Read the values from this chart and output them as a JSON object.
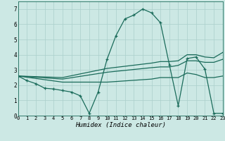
{
  "xlabel": "Humidex (Indice chaleur)",
  "bg_color": "#cce8e4",
  "grid_color": "#aacfcb",
  "line_color": "#1a6b5a",
  "xlim": [
    0,
    23
  ],
  "ylim": [
    0,
    7.5
  ],
  "xticks": [
    0,
    1,
    2,
    3,
    4,
    5,
    6,
    7,
    8,
    9,
    10,
    11,
    12,
    13,
    14,
    15,
    16,
    17,
    18,
    19,
    20,
    21,
    22,
    23
  ],
  "yticks": [
    0,
    1,
    2,
    3,
    4,
    5,
    6,
    7
  ],
  "curve_main_x": [
    0,
    1,
    2,
    3,
    4,
    5,
    6,
    7,
    8,
    9,
    10,
    11,
    12,
    13,
    14,
    15,
    16,
    17,
    18,
    19,
    20,
    21,
    22,
    23
  ],
  "curve_main_y": [
    2.6,
    2.3,
    2.1,
    1.8,
    1.75,
    1.65,
    1.55,
    1.3,
    0.15,
    1.55,
    3.7,
    5.25,
    6.35,
    6.6,
    7.0,
    6.75,
    6.1,
    3.35,
    0.65,
    3.75,
    3.85,
    3.05,
    0.15,
    0.15
  ],
  "curve_up1_x": [
    0,
    5,
    10,
    15,
    16,
    17,
    18,
    19,
    20,
    21,
    22,
    23
  ],
  "curve_up1_y": [
    2.6,
    2.5,
    3.1,
    3.45,
    3.55,
    3.55,
    3.6,
    4.0,
    4.0,
    3.85,
    3.8,
    4.15
  ],
  "curve_up2_x": [
    0,
    5,
    10,
    15,
    16,
    17,
    18,
    19,
    20,
    21,
    22,
    23
  ],
  "curve_up2_y": [
    2.6,
    2.4,
    2.85,
    3.15,
    3.2,
    3.2,
    3.3,
    3.6,
    3.6,
    3.5,
    3.5,
    3.7
  ],
  "curve_down_x": [
    0,
    5,
    10,
    15,
    16,
    17,
    18,
    19,
    20,
    21,
    22,
    23
  ],
  "curve_down_y": [
    2.6,
    2.2,
    2.2,
    2.4,
    2.5,
    2.5,
    2.5,
    2.8,
    2.7,
    2.5,
    2.5,
    2.6
  ]
}
